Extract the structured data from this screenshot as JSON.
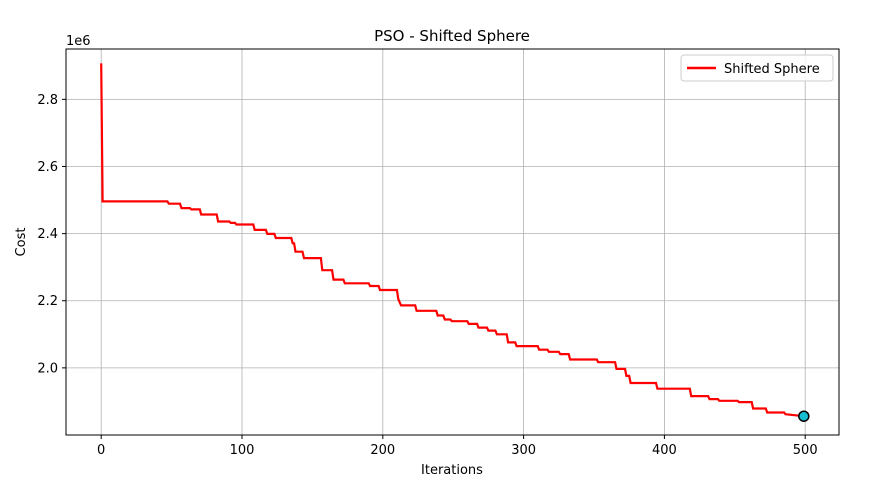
{
  "chart_data": {
    "type": "line",
    "title": "PSO - Shifted Sphere",
    "xlabel": "Iterations",
    "ylabel": "Cost",
    "y_offset_label": "1e6",
    "xlim": [
      -25,
      524
    ],
    "ylim": [
      1.8,
      2.95
    ],
    "x_ticks": [
      0,
      100,
      200,
      300,
      400,
      500
    ],
    "y_ticks": [
      2.0,
      2.2,
      2.4,
      2.6,
      2.8
    ],
    "y_tick_labels": [
      "2.0",
      "2.2",
      "2.4",
      "2.6",
      "2.8"
    ],
    "grid": true,
    "legend": {
      "location": "upper right"
    },
    "series": [
      {
        "name": "Shifted Sphere",
        "color": "#ff0000",
        "step_points": [
          [
            0,
            2.907
          ],
          [
            1,
            2.496
          ],
          [
            47,
            2.496
          ],
          [
            48,
            2.489
          ],
          [
            56,
            2.489
          ],
          [
            57,
            2.476
          ],
          [
            63,
            2.476
          ],
          [
            64,
            2.472
          ],
          [
            70,
            2.472
          ],
          [
            71,
            2.457
          ],
          [
            82,
            2.457
          ],
          [
            83,
            2.436
          ],
          [
            91,
            2.436
          ],
          [
            92,
            2.432
          ],
          [
            95,
            2.432
          ],
          [
            96,
            2.427
          ],
          [
            108,
            2.427
          ],
          [
            109,
            2.411
          ],
          [
            117,
            2.411
          ],
          [
            118,
            2.399
          ],
          [
            123,
            2.399
          ],
          [
            124,
            2.387
          ],
          [
            135,
            2.387
          ],
          [
            136,
            2.371
          ],
          [
            137,
            2.371
          ],
          [
            138,
            2.346
          ],
          [
            143,
            2.346
          ],
          [
            144,
            2.327
          ],
          [
            156,
            2.327
          ],
          [
            157,
            2.291
          ],
          [
            164,
            2.291
          ],
          [
            165,
            2.263
          ],
          [
            172,
            2.263
          ],
          [
            173,
            2.252
          ],
          [
            190,
            2.252
          ],
          [
            191,
            2.244
          ],
          [
            197,
            2.244
          ],
          [
            198,
            2.232
          ],
          [
            210,
            2.232
          ],
          [
            211,
            2.205
          ],
          [
            212,
            2.195
          ],
          [
            213,
            2.186
          ],
          [
            223,
            2.186
          ],
          [
            224,
            2.17
          ],
          [
            238,
            2.17
          ],
          [
            239,
            2.156
          ],
          [
            243,
            2.156
          ],
          [
            244,
            2.144
          ],
          [
            248,
            2.144
          ],
          [
            249,
            2.139
          ],
          [
            260,
            2.139
          ],
          [
            261,
            2.131
          ],
          [
            267,
            2.131
          ],
          [
            268,
            2.12
          ],
          [
            274,
            2.12
          ],
          [
            275,
            2.111
          ],
          [
            280,
            2.111
          ],
          [
            281,
            2.1
          ],
          [
            288,
            2.1
          ],
          [
            289,
            2.076
          ],
          [
            294,
            2.076
          ],
          [
            295,
            2.065
          ],
          [
            310,
            2.065
          ],
          [
            311,
            2.054
          ],
          [
            317,
            2.054
          ],
          [
            318,
            2.048
          ],
          [
            325,
            2.048
          ],
          [
            326,
            2.041
          ],
          [
            332,
            2.041
          ],
          [
            333,
            2.025
          ],
          [
            352,
            2.025
          ],
          [
            353,
            2.017
          ],
          [
            365,
            2.017
          ],
          [
            366,
            1.997
          ],
          [
            372,
            1.997
          ],
          [
            373,
            1.976
          ],
          [
            375,
            1.976
          ],
          [
            376,
            1.955
          ],
          [
            394,
            1.955
          ],
          [
            395,
            1.938
          ],
          [
            418,
            1.938
          ],
          [
            419,
            1.916
          ],
          [
            431,
            1.916
          ],
          [
            432,
            1.907
          ],
          [
            438,
            1.907
          ],
          [
            439,
            1.902
          ],
          [
            452,
            1.902
          ],
          [
            453,
            1.898
          ],
          [
            462,
            1.898
          ],
          [
            463,
            1.879
          ],
          [
            472,
            1.879
          ],
          [
            473,
            1.867
          ],
          [
            485,
            1.867
          ],
          [
            486,
            1.862
          ],
          [
            499,
            1.856
          ]
        ]
      }
    ],
    "final_marker": {
      "x": 499,
      "y": 1.856,
      "fill": "#17becf",
      "edge": "#000000"
    }
  }
}
